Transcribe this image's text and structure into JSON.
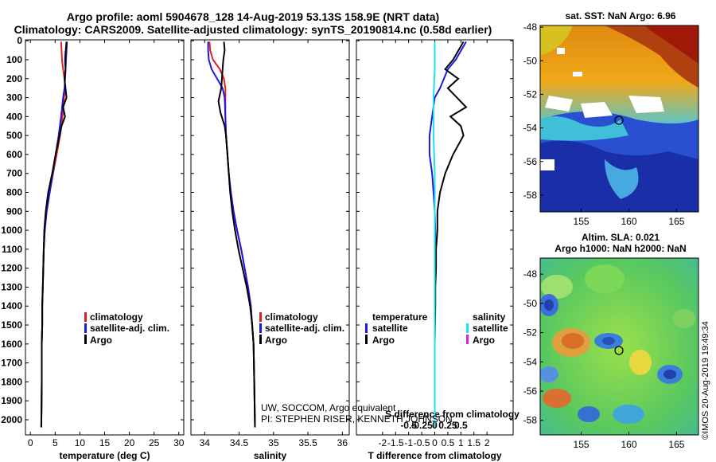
{
  "header": {
    "line1": "Argo profile: aoml 5904678_128 14-Aug-2019 53.13S 158.9E (NRT data)",
    "line2": "Climatology: CARS2009. Satellite-adjusted climatology: synTS_20190814.nc (0.58d earlier)"
  },
  "colors": {
    "climatology": "#e02020",
    "satellite": "#1a1adc",
    "argo": "#000000",
    "sat_salinity": "#20e0f0",
    "argo_salinity": "#e020e0"
  },
  "chart_data": [
    {
      "type": "line",
      "title": "",
      "xlabel": "temperature (deg C)",
      "ylabel": "",
      "xlim": [
        -1,
        31
      ],
      "ylim": [
        2080,
        -5
      ],
      "xticks": [
        "0",
        "5",
        "10",
        "15",
        "20",
        "25",
        "30"
      ],
      "legend": {
        "placement": "lower-center",
        "items": [
          "climatology",
          "satellite-adj. clim.",
          "Argo"
        ]
      },
      "series": [
        {
          "name": "climatology",
          "x": [
            6.2,
            6.4,
            6.6,
            6.9,
            7.0,
            6.8,
            6.5,
            6.0,
            5.3,
            4.6,
            3.9,
            3.3,
            2.9,
            2.7,
            2.6,
            2.5,
            2.4,
            2.4,
            2.3,
            2.3,
            2.2
          ],
          "y": [
            5,
            100,
            150,
            200,
            250,
            300,
            400,
            500,
            600,
            700,
            800,
            900,
            1000,
            1100,
            1200,
            1300,
            1400,
            1500,
            1600,
            1800,
            2040
          ]
        },
        {
          "name": "satellite-adj. clim.",
          "x": [
            7.4,
            7.2,
            7.1,
            7.0,
            6.9,
            6.6,
            6.2,
            5.7,
            5.1,
            4.5,
            3.9,
            3.3,
            2.9,
            2.7,
            2.6,
            2.5,
            2.4,
            2.4,
            2.3,
            2.3,
            2.2
          ],
          "y": [
            5,
            100,
            150,
            200,
            250,
            300,
            400,
            500,
            600,
            700,
            800,
            900,
            1000,
            1100,
            1200,
            1300,
            1400,
            1500,
            1600,
            1800,
            2040
          ]
        },
        {
          "name": "Argo",
          "x": [
            7.3,
            7.1,
            7.0,
            7.1,
            6.9,
            7.3,
            6.6,
            7.0,
            6.3,
            5.9,
            5.1,
            4.4,
            3.6,
            3.1,
            2.8,
            2.7,
            2.6,
            2.5,
            2.4,
            2.4,
            2.3,
            2.3,
            2.2
          ],
          "y": [
            5,
            60,
            100,
            150,
            200,
            300,
            350,
            400,
            450,
            500,
            600,
            700,
            800,
            900,
            1000,
            1100,
            1200,
            1300,
            1400,
            1500,
            1600,
            1800,
            2040
          ]
        }
      ]
    },
    {
      "type": "line",
      "title": "",
      "xlabel": "salinity",
      "ylabel": "",
      "xlim": [
        33.8,
        36.1
      ],
      "ylim": [
        2080,
        -5
      ],
      "xticks": [
        "34",
        "34.5",
        "35",
        "35.5",
        "36"
      ],
      "legend": {
        "placement": "lower-center",
        "items": [
          "climatology",
          "satellite-adj. clim.",
          "Argo"
        ]
      },
      "series": [
        {
          "name": "climatology",
          "x": [
            34.07,
            34.08,
            34.12,
            34.22,
            34.28,
            34.3,
            34.3,
            34.3,
            34.31,
            34.33,
            34.35,
            34.38,
            34.42,
            34.47,
            34.53,
            34.58,
            34.63,
            34.67,
            34.69,
            34.71,
            34.72,
            34.73
          ],
          "y": [
            5,
            50,
            100,
            150,
            200,
            250,
            300,
            400,
            500,
            600,
            700,
            800,
            900,
            1000,
            1100,
            1200,
            1300,
            1400,
            1500,
            1600,
            1800,
            2040
          ]
        },
        {
          "name": "satellite-adj. clim.",
          "x": [
            34.05,
            34.05,
            34.06,
            34.1,
            34.18,
            34.26,
            34.29,
            34.3,
            34.31,
            34.33,
            34.35,
            34.38,
            34.42,
            34.47,
            34.53,
            34.58,
            34.63,
            34.67,
            34.69,
            34.71,
            34.72,
            34.73
          ],
          "y": [
            5,
            50,
            100,
            150,
            200,
            250,
            300,
            400,
            500,
            600,
            700,
            800,
            900,
            1000,
            1100,
            1200,
            1300,
            1400,
            1500,
            1600,
            1800,
            2040
          ]
        },
        {
          "name": "Argo",
          "x": [
            34.28,
            34.29,
            34.27,
            34.26,
            34.24,
            34.2,
            34.23,
            34.29,
            34.31,
            34.33,
            34.35,
            34.37,
            34.4,
            34.44,
            34.49,
            34.55,
            34.61,
            34.66,
            34.69,
            34.71,
            34.72,
            34.73
          ],
          "y": [
            5,
            50,
            100,
            150,
            250,
            320,
            380,
            450,
            500,
            600,
            700,
            800,
            900,
            1000,
            1100,
            1200,
            1300,
            1400,
            1500,
            1600,
            1800,
            2040
          ]
        }
      ]
    },
    {
      "type": "line",
      "title": "",
      "xlabel": "T difference from climatology",
      "ylabel": "",
      "xlim": [
        -3,
        3
      ],
      "ylim": [
        2080,
        -5
      ],
      "xticks": [
        "-2",
        "-1.5",
        "-1",
        "-0.5",
        "0",
        "0.5",
        "1",
        "1.5",
        "2"
      ],
      "secondary_xlabel": "S difference from climatology",
      "secondary_xticks": [
        "-0.5",
        "-0.25",
        "0",
        "0.25",
        "0.5"
      ],
      "legend": {
        "placement": "lower-center",
        "left_title": "temperature",
        "right_title": "salinity",
        "items": [
          "satellite",
          "Argo"
        ]
      },
      "series": [
        {
          "name": "temperature satellite",
          "x": [
            1.2,
            0.8,
            0.5,
            0.2,
            0.0,
            -0.1,
            -0.2,
            -0.2,
            -0.1,
            -0.05,
            0.0,
            0.02,
            0.02,
            0.02,
            0.0,
            0.0,
            0.0,
            0.0,
            0.0,
            0.0
          ],
          "y": [
            5,
            100,
            150,
            250,
            300,
            400,
            500,
            600,
            700,
            800,
            900,
            1000,
            1100,
            1200,
            1300,
            1400,
            1500,
            1600,
            1800,
            2040
          ]
        },
        {
          "name": "temperature Argo",
          "x": [
            1.1,
            0.7,
            0.4,
            0.9,
            0.5,
            1.2,
            0.6,
            1.0,
            1.1,
            0.7,
            0.4,
            0.2,
            0.1,
            0.1,
            0.05,
            0.05,
            0.02,
            0.02,
            0.0,
            0.0
          ],
          "y": [
            5,
            100,
            150,
            200,
            250,
            350,
            400,
            450,
            500,
            600,
            700,
            800,
            900,
            1000,
            1100,
            1200,
            1300,
            1400,
            1600,
            2040
          ]
        },
        {
          "name": "salinity satellite",
          "x": [
            0.0,
            0.0,
            0.0,
            -0.05,
            -0.05,
            0.0,
            0.0,
            0.0,
            0.0,
            0.0,
            0.0
          ],
          "y": [
            5,
            80,
            150,
            300,
            500,
            700,
            900,
            1200,
            1500,
            1800,
            2040
          ]
        }
      ]
    }
  ],
  "notes": {
    "line1": "UW, SOCCOM, Argo equivalent",
    "line2": "PI: STEPHEN RISER, KENNETH JOHNSON"
  },
  "yticks": [
    "0",
    "100",
    "200",
    "300",
    "400",
    "500",
    "600",
    "700",
    "800",
    "900",
    "1000",
    "1100",
    "1200",
    "1300",
    "1400",
    "1500",
    "1600",
    "1700",
    "1800",
    "1900",
    "2000"
  ],
  "legend_text": {
    "clim": "climatology",
    "sat": "satellite-adj. clim.",
    "argo": "Argo",
    "t_title": "temperature",
    "s_title": "salinity",
    "sat_short": "satellite"
  },
  "maps": {
    "sst_title": "sat. SST: NaN Argo: 6.96",
    "sla_title1": "Altim. SLA: 0.021",
    "sla_title2": "Argo h1000: NaN h2000: NaN",
    "lat_ticks": [
      "-48",
      "-50",
      "-52",
      "-54",
      "-56",
      "-58"
    ],
    "lon_ticks": [
      "155",
      "160",
      "165"
    ],
    "stamp": "©IMOS 20-Aug-2019 19:49:34"
  }
}
